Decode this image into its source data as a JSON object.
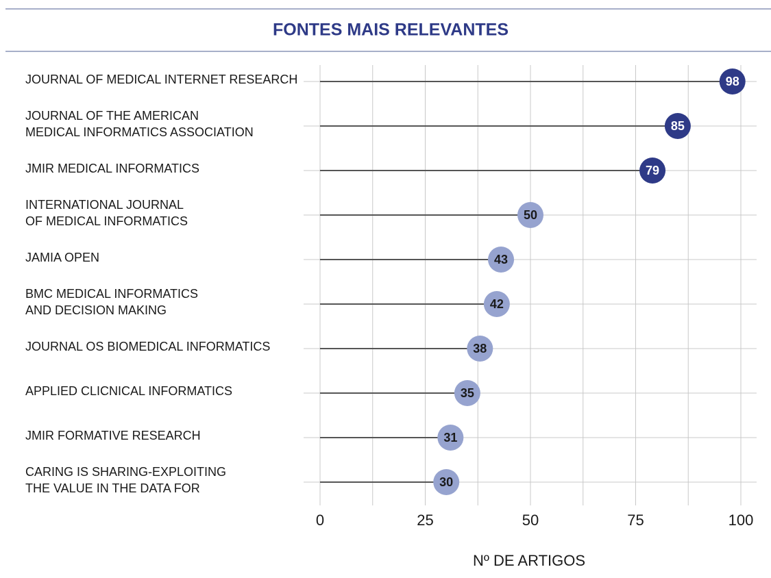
{
  "chart_data": {
    "type": "lollipop",
    "title": "FONTES MAIS RELEVANTES",
    "x_label": "Nº DE ARTIGOS",
    "categories": [
      [
        "JOURNAL OF MEDICAL INTERNET RESEARCH"
      ],
      [
        "JOURNAL OF THE AMERICAN",
        "MEDICAL INFORMATICS ASSOCIATION"
      ],
      [
        "JMIR MEDICAL INFORMATICS"
      ],
      [
        "INTERNATIONAL JOURNAL",
        "OF MEDICAL INFORMATICS"
      ],
      [
        "JAMIA OPEN"
      ],
      [
        "BMC MEDICAL INFORMATICS",
        "AND DECISION MAKING"
      ],
      [
        "JOURNAL OS BIOMEDICAL INFORMATICS"
      ],
      [
        "APPLIED CLICNICAL INFORMATICS"
      ],
      [
        "JMIR FORMATIVE RESEARCH"
      ],
      [
        "CARING IS SHARING-EXPLOITING",
        "THE VALUE IN THE DATA FOR"
      ]
    ],
    "values": [
      98,
      85,
      79,
      50,
      43,
      42,
      38,
      35,
      31,
      30
    ],
    "colors": [
      "#2e3a87",
      "#2e3a87",
      "#2e3a87",
      "#96a3cf",
      "#96a3cf",
      "#96a3cf",
      "#96a3cf",
      "#96a3cf",
      "#96a3cf",
      "#96a3cf"
    ],
    "xlim": [
      0,
      100
    ],
    "xticks": [
      0,
      25,
      50,
      75,
      100
    ],
    "minor_xticks": [
      12.5,
      37.5,
      62.5,
      87.5
    ],
    "grid": true
  }
}
